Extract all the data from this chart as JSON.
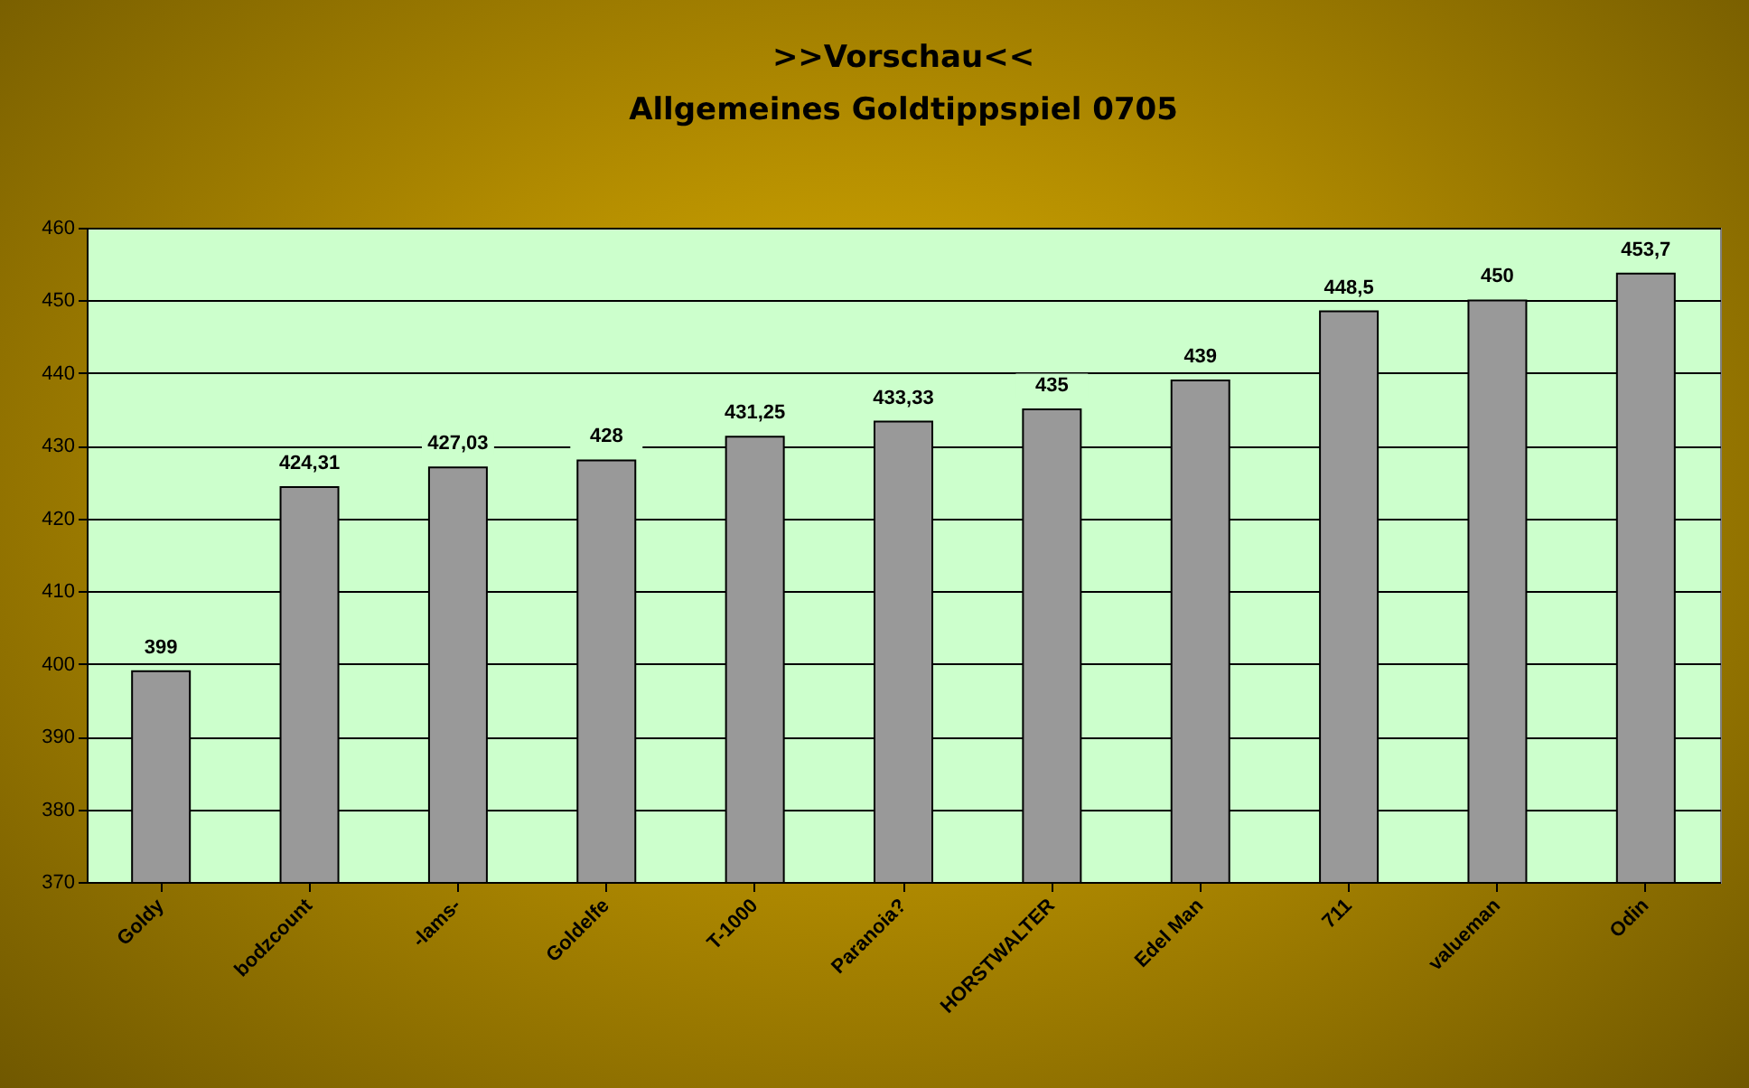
{
  "chart_data": {
    "type": "bar",
    "title": ">>Vorschau<<",
    "subtitle": "Allgemeines Goldtippspiel 0705",
    "categories": [
      "Goldy",
      "bodzcount",
      "-lams-",
      "Goldelfe",
      "T-1000",
      "Paranoia?",
      "HORSTWALTER",
      "Edel Man",
      "711",
      "valueman",
      "Odin"
    ],
    "values": [
      399,
      424.31,
      427.03,
      428,
      431.25,
      433.33,
      435,
      439,
      448.5,
      450,
      453.7
    ],
    "value_labels": [
      "399",
      "424,31",
      "427,03",
      "428",
      "431,25",
      "433,33",
      "435",
      "439",
      "448,5",
      "450",
      "453,7"
    ],
    "color": "#999999",
    "ylim": [
      370,
      460
    ],
    "yticks": [
      370,
      380,
      390,
      400,
      410,
      420,
      430,
      440,
      450,
      460
    ],
    "grid": true
  }
}
